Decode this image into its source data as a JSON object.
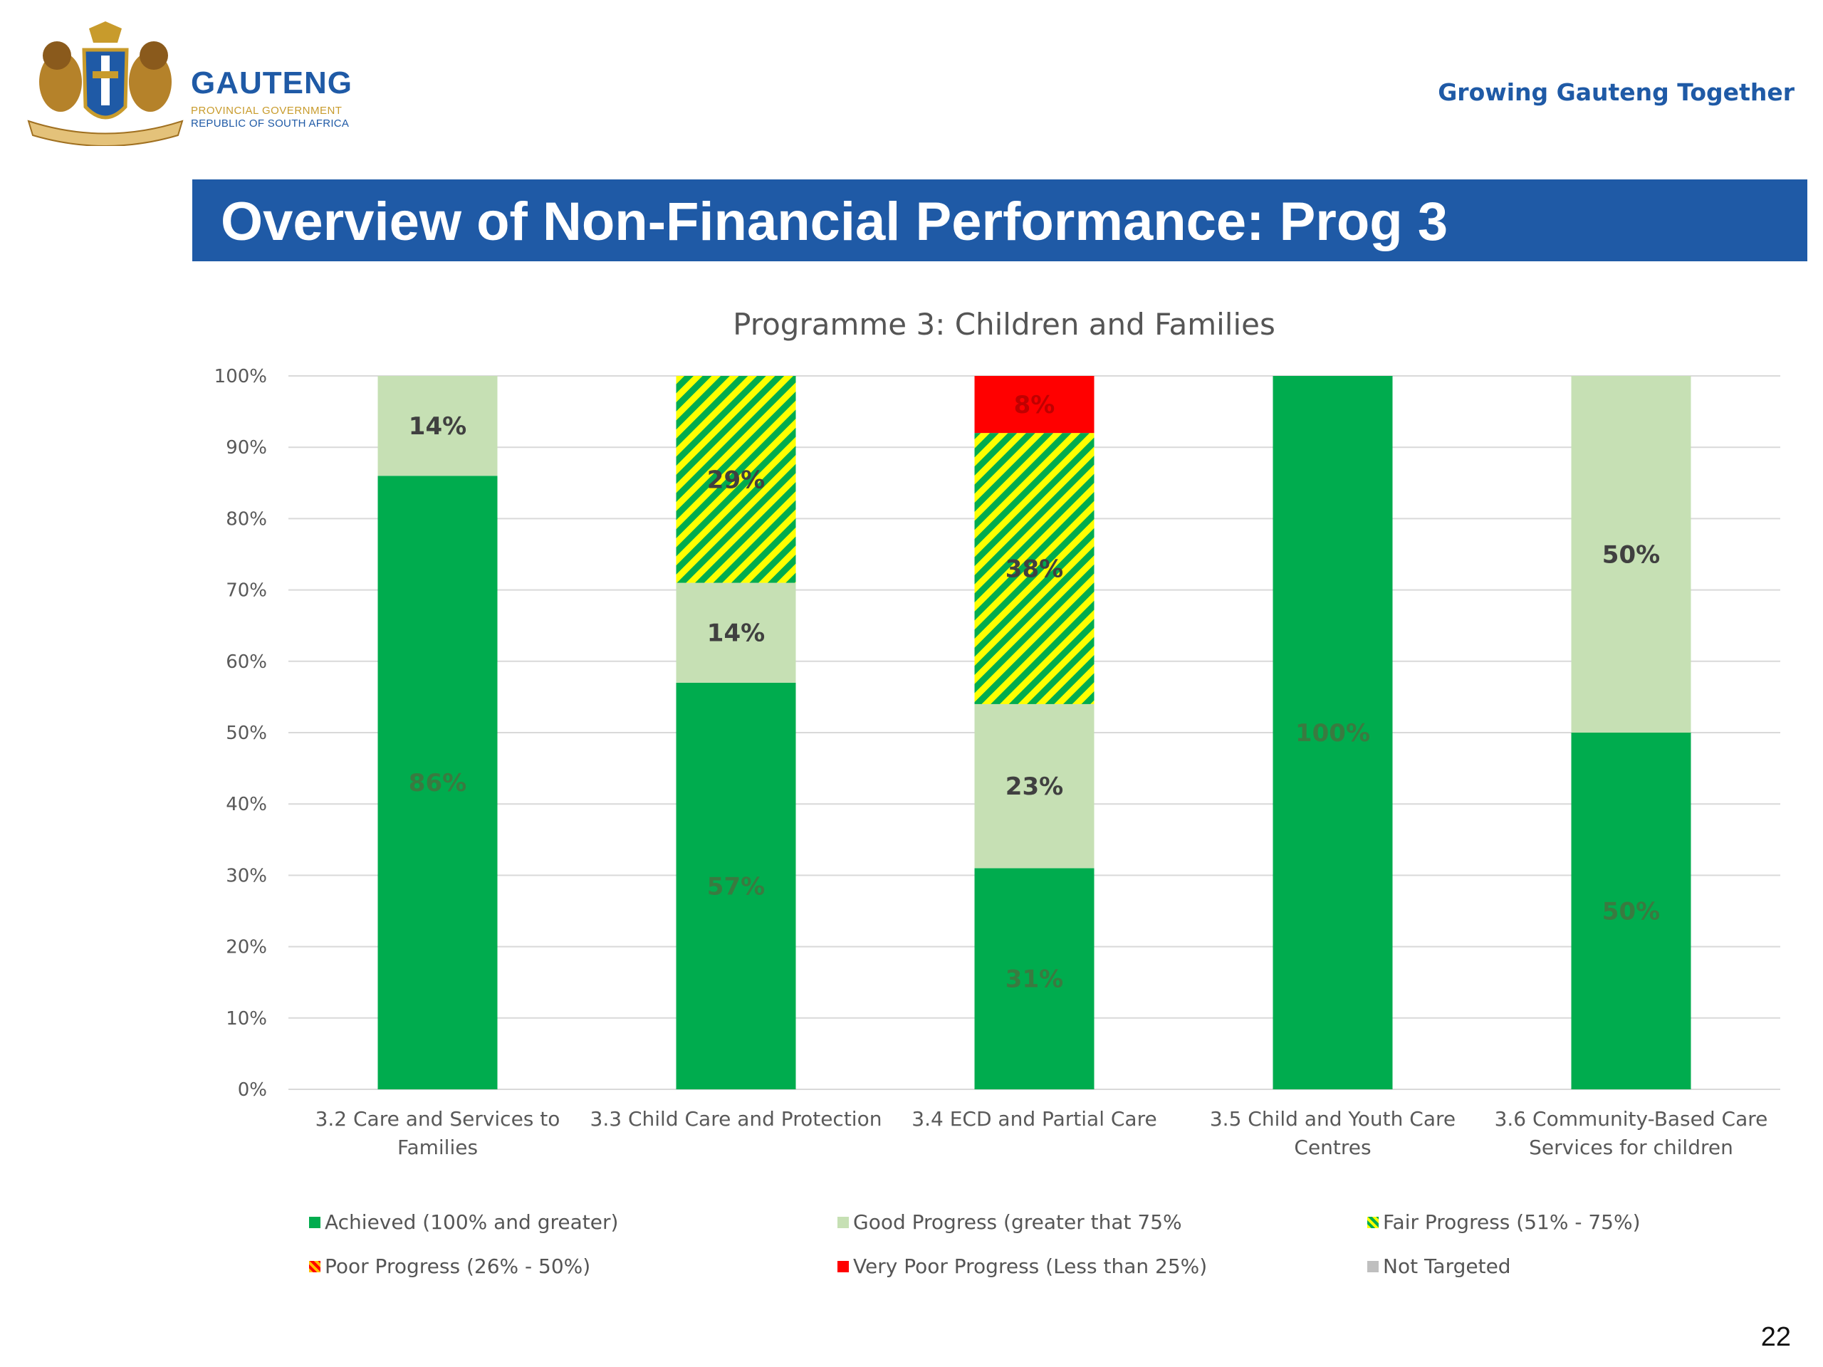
{
  "header": {
    "brand": "GAUTENG",
    "brand_line1": "PROVINCIAL GOVERNMENT",
    "brand_line2": "REPUBLIC OF SOUTH AFRICA",
    "tagline": "Growing Gauteng Together"
  },
  "slide_title": "Overview of Non-Financial Performance: Prog 3",
  "page_number": "22",
  "colors": {
    "achieved": "#00ac4e",
    "good": "#c6e0b4",
    "fair_a": "#00ac4e",
    "fair_b": "#ffff00",
    "poor_a": "#ff0000",
    "poor_b": "#ffc000",
    "very_poor": "#ff0000",
    "not_targeted": "#bfbfbf",
    "brand_blue": "#1f5aa6"
  },
  "chart_data": {
    "type": "bar",
    "stacked": true,
    "title": "Programme 3: Children and Families",
    "categories": [
      [
        "3.2  Care and Services to",
        "Families"
      ],
      [
        "3.3 Child Care and Protection"
      ],
      [
        "3.4  ECD and Partial Care"
      ],
      [
        "3.5 Child and Youth Care",
        "Centres"
      ],
      [
        "3.6 Community-Based Care",
        "Services for children"
      ]
    ],
    "series": [
      {
        "name": "Achieved (100%  and greater)",
        "key": "achieved",
        "values": [
          86,
          57,
          31,
          100,
          50
        ],
        "labels": [
          "86%",
          "57%",
          "31%",
          "100%",
          "50%"
        ]
      },
      {
        "name": "Good Progress (greater that 75%",
        "key": "good",
        "values": [
          14,
          14,
          23,
          0,
          50
        ],
        "labels": [
          "14%",
          "14%",
          "23%",
          "",
          "50%"
        ]
      },
      {
        "name": "Fair Progress (51% - 75%)",
        "key": "fair",
        "values": [
          0,
          29,
          38,
          0,
          0
        ],
        "labels": [
          "",
          "29%",
          "38%",
          "",
          ""
        ]
      },
      {
        "name": "Poor Progress (26% - 50%)",
        "key": "poor",
        "values": [
          0,
          0,
          0,
          0,
          0
        ],
        "labels": [
          "",
          "",
          "",
          "",
          ""
        ]
      },
      {
        "name": "Very Poor Progress (Less than 25%)",
        "key": "very_poor",
        "values": [
          0,
          0,
          8,
          0,
          0
        ],
        "labels": [
          "",
          "",
          "8%",
          "",
          ""
        ]
      },
      {
        "name": "Not Targeted",
        "key": "not_targeted",
        "values": [
          0,
          0,
          0,
          0,
          0
        ],
        "labels": [
          "",
          "",
          "",
          "",
          ""
        ]
      }
    ],
    "ylim": [
      0,
      100
    ],
    "yticks": [
      "0%",
      "10%",
      "20%",
      "30%",
      "40%",
      "50%",
      "60%",
      "70%",
      "80%",
      "90%",
      "100%"
    ],
    "grid": true,
    "legend_position": "bottom"
  }
}
